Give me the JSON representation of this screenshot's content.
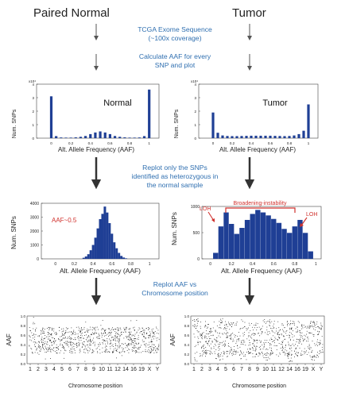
{
  "headers": {
    "left": "Paired Normal",
    "right": "Tumor"
  },
  "steps": [
    {
      "lines": [
        "TCGA Exome Sequence",
        "(~100x coverage)"
      ]
    },
    {
      "lines": [
        "Calculate AAF for every",
        "SNP and plot"
      ]
    },
    {
      "lines": [
        "Replot only the SNPs",
        "identified as heterozygous in",
        "the normal sample"
      ]
    },
    {
      "lines": [
        "Replot AAF vs",
        "Chromosome position"
      ]
    }
  ],
  "colors": {
    "bars": "#1f3f95",
    "accent": "#d0312d",
    "step_text": "#2f6fb0",
    "scatter": "#111111"
  },
  "panels": {
    "normal_hist": {
      "title": "Normal",
      "xlabel": "Alt. Allele Frequency (AAF)",
      "ylabel": "Num. SNPs",
      "scale_label": "x10⁴",
      "yticks": [
        "4",
        "3",
        "2",
        "1",
        "0"
      ],
      "xticks": [
        "0",
        "0.2",
        "0.4",
        "0.6",
        "0.8",
        "1"
      ]
    },
    "tumor_hist": {
      "title": "Tumor",
      "xlabel": "Alt. Allele Frequency (AAF)",
      "ylabel": "Num. SNPs",
      "scale_label": "x10⁴",
      "yticks": [
        "4",
        "3",
        "2",
        "1",
        "0"
      ],
      "xticks": [
        "0",
        "0.2",
        "0.4",
        "0.6",
        "0.8",
        "1"
      ]
    },
    "normal_het": {
      "annotation": "AAF~0.5",
      "xlabel": "Alt. Allele Frequency (AAF)",
      "ylabel": "Num. SNPs",
      "yticks": [
        "4000",
        "3000",
        "2000",
        "1000",
        "0"
      ],
      "xticks": [
        "0",
        "0.2",
        "0.4",
        "0.6",
        "0.8",
        "1"
      ]
    },
    "tumor_het": {
      "annotation_left": "LOH",
      "annotation_mid": "Broadening-instability",
      "annotation_right": "LOH",
      "xlabel": "Alt. Allele Frequency (AAF)",
      "ylabel": "Num. SNPs",
      "yticks": [
        "1000",
        "500",
        "0"
      ],
      "xticks": [
        "0",
        "0.2",
        "0.4",
        "0.6",
        "0.8",
        "1"
      ]
    },
    "normal_chr": {
      "ylabel": "AAF",
      "xlabel": "Chromosome position",
      "yticks": [
        "1.0",
        "0.8",
        "0.6",
        "0.4",
        "0.2",
        "0.0"
      ],
      "chromosomes": [
        "1",
        "2",
        "3",
        "4",
        "5",
        "6",
        "7",
        "8",
        "9",
        "10",
        "11",
        "12",
        "14",
        "16",
        "19",
        "X",
        "Y"
      ]
    },
    "tumor_chr": {
      "ylabel": "AAF",
      "xlabel": "Chromosome position",
      "yticks": [
        "1.0",
        "0.8",
        "0.6",
        "0.4",
        "0.2",
        "0.0"
      ],
      "chromosomes": [
        "1",
        "2",
        "3",
        "4",
        "5",
        "6",
        "7",
        "8",
        "9",
        "10",
        "11",
        "12",
        "14",
        "16",
        "19",
        "X",
        "Y"
      ]
    }
  },
  "chart_data": [
    {
      "type": "bar",
      "name": "normal_all_snps",
      "x": [
        0,
        0.05,
        0.1,
        0.15,
        0.2,
        0.25,
        0.3,
        0.35,
        0.4,
        0.45,
        0.5,
        0.55,
        0.6,
        0.65,
        0.7,
        0.75,
        0.8,
        0.85,
        0.9,
        0.95,
        1
      ],
      "values": [
        3.1,
        0.15,
        0.05,
        0.04,
        0.04,
        0.06,
        0.1,
        0.16,
        0.3,
        0.42,
        0.5,
        0.42,
        0.3,
        0.16,
        0.1,
        0.06,
        0.04,
        0.04,
        0.05,
        0.15,
        3.6
      ],
      "ylim": [
        0,
        4
      ],
      "units": "x10^4"
    },
    {
      "type": "bar",
      "name": "tumor_all_snps",
      "x": [
        0,
        0.05,
        0.1,
        0.15,
        0.2,
        0.25,
        0.3,
        0.35,
        0.4,
        0.45,
        0.5,
        0.55,
        0.6,
        0.65,
        0.7,
        0.75,
        0.8,
        0.85,
        0.9,
        0.95,
        1
      ],
      "values": [
        1.9,
        0.4,
        0.2,
        0.16,
        0.15,
        0.15,
        0.16,
        0.17,
        0.18,
        0.18,
        0.18,
        0.18,
        0.18,
        0.17,
        0.16,
        0.15,
        0.16,
        0.2,
        0.3,
        0.55,
        2.5
      ],
      "ylim": [
        0,
        4
      ],
      "units": "x10^4"
    },
    {
      "type": "bar",
      "name": "normal_het_snps",
      "x": [
        0.3,
        0.325,
        0.35,
        0.375,
        0.4,
        0.425,
        0.45,
        0.475,
        0.5,
        0.525,
        0.55,
        0.575,
        0.6,
        0.625,
        0.65,
        0.675,
        0.7,
        0.725,
        0.75
      ],
      "values": [
        80,
        180,
        350,
        650,
        1050,
        1600,
        2300,
        3000,
        3400,
        3950,
        3500,
        2700,
        1900,
        1250,
        800,
        450,
        220,
        100,
        40
      ],
      "ylim": [
        0,
        4200
      ]
    },
    {
      "type": "bar",
      "name": "tumor_het_snps",
      "x": [
        0.05,
        0.1,
        0.15,
        0.2,
        0.25,
        0.3,
        0.35,
        0.4,
        0.45,
        0.5,
        0.55,
        0.6,
        0.65,
        0.7,
        0.75,
        0.8,
        0.85,
        0.9,
        0.95
      ],
      "values": [
        120,
        650,
        930,
        700,
        500,
        620,
        780,
        900,
        980,
        930,
        870,
        800,
        720,
        600,
        520,
        650,
        780,
        520,
        150
      ],
      "ylim": [
        0,
        1050
      ]
    }
  ]
}
